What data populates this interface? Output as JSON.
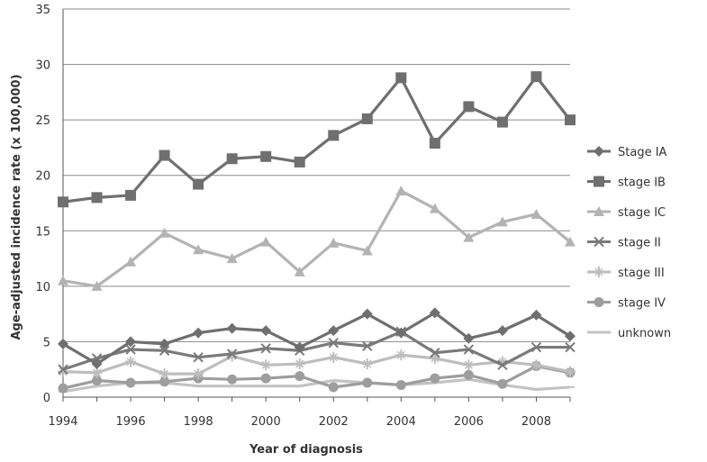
{
  "chart_data": {
    "type": "line",
    "title": "",
    "xlabel": "Year of diagnosis",
    "ylabel": "Age-adjusted incidence rate (x 100,000)",
    "ylim": [
      0,
      35
    ],
    "xlim": [
      1994,
      2009
    ],
    "x": [
      1994,
      1995,
      1996,
      1997,
      1998,
      1999,
      2000,
      2001,
      2002,
      2003,
      2004,
      2005,
      2006,
      2007,
      2008,
      2009
    ],
    "x_tick_labels": [
      "1994",
      "1996",
      "1998",
      "2000",
      "2002",
      "2004",
      "2006",
      "2008"
    ],
    "y_tick_labels": [
      "0",
      "5",
      "10",
      "15",
      "20",
      "25",
      "30",
      "35"
    ],
    "grid": "horizontal",
    "legend_position": "right",
    "series": [
      {
        "name": "Stage IA",
        "marker": "diamond",
        "color": "#6f6f6f",
        "values": [
          4.8,
          3.0,
          5.0,
          4.8,
          5.8,
          6.2,
          6.0,
          4.5,
          6.0,
          7.5,
          5.8,
          7.6,
          5.3,
          6.0,
          7.4,
          5.5
        ]
      },
      {
        "name": "stage IB",
        "marker": "square",
        "color": "#6f6f6f",
        "values": [
          17.6,
          18.0,
          18.2,
          21.8,
          19.2,
          21.5,
          21.7,
          21.2,
          23.6,
          25.1,
          28.8,
          22.9,
          26.2,
          24.8,
          28.9,
          25.0
        ]
      },
      {
        "name": "stage IC",
        "marker": "triangle",
        "color": "#b3b3b3",
        "values": [
          10.5,
          10.0,
          12.2,
          14.8,
          13.3,
          12.5,
          14.0,
          11.3,
          13.9,
          13.2,
          18.6,
          17.0,
          14.4,
          15.8,
          16.5,
          14.0
        ]
      },
      {
        "name": "stage II",
        "marker": "x",
        "color": "#7a7a7a",
        "values": [
          2.5,
          3.5,
          4.3,
          4.2,
          3.6,
          3.9,
          4.4,
          4.2,
          4.9,
          4.6,
          5.9,
          4.0,
          4.3,
          2.9,
          4.5,
          4.5
        ]
      },
      {
        "name": "stage III",
        "marker": "star",
        "color": "#bdbdbd",
        "values": [
          2.3,
          2.2,
          3.2,
          2.1,
          2.1,
          3.7,
          2.9,
          3.0,
          3.6,
          3.0,
          3.8,
          3.5,
          2.9,
          3.2,
          2.9,
          2.3
        ]
      },
      {
        "name": "stage IV",
        "marker": "circle",
        "color": "#9d9d9d",
        "values": [
          0.8,
          1.5,
          1.3,
          1.4,
          1.7,
          1.6,
          1.7,
          1.9,
          0.9,
          1.3,
          1.1,
          1.7,
          2.0,
          1.2,
          2.8,
          2.2
        ]
      },
      {
        "name": "unknown",
        "marker": "dash",
        "color": "#c3c3c3",
        "values": [
          0.5,
          1.0,
          1.3,
          1.3,
          1.0,
          1.0,
          1.0,
          1.0,
          1.5,
          1.3,
          1.1,
          1.3,
          1.6,
          1.1,
          0.7,
          0.9
        ]
      }
    ]
  }
}
